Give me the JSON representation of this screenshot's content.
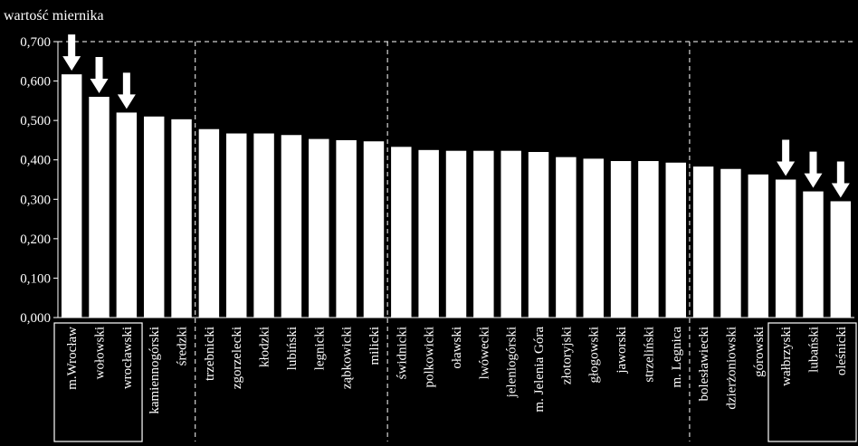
{
  "chart_data": {
    "type": "bar",
    "ylabel": "wartość miernika",
    "ylim": [
      0,
      0.7
    ],
    "yticks": [
      "0,000",
      "0,100",
      "0,200",
      "0,300",
      "0,400",
      "0,500",
      "0,600",
      "0,700"
    ],
    "grid": false,
    "legend": "none",
    "categories": [
      "m.Wrocław",
      "wołowski",
      "wrocławski",
      "kamiennogórski",
      "średzki",
      "trzebnicki",
      "zgorzelecki",
      "kłodzki",
      "lubiński",
      "legnicki",
      "ząbkowicki",
      "milicki",
      "świdnicki",
      "polkowicki",
      "oławski",
      "lwówecki",
      "jeleniogórski",
      "m. Jelenia Góra",
      "złotoryjski",
      "głogowski",
      "jaworski",
      "strzeliński",
      "m. Legnica",
      "bolesławiecki",
      "dzierżoniowski",
      "górowski",
      "wałbrzyski",
      "lubański",
      "oleśnicki"
    ],
    "values": [
      0.617,
      0.56,
      0.52,
      0.51,
      0.503,
      0.478,
      0.467,
      0.467,
      0.463,
      0.453,
      0.45,
      0.447,
      0.433,
      0.425,
      0.423,
      0.423,
      0.423,
      0.42,
      0.407,
      0.403,
      0.397,
      0.397,
      0.393,
      0.383,
      0.377,
      0.363,
      0.35,
      0.32,
      0.295
    ],
    "group_separators_after": [
      4,
      11,
      22
    ],
    "highlighted": [
      0,
      1,
      2,
      26,
      27,
      28
    ],
    "bar_color": "#ffffff",
    "background_color": "#000000"
  }
}
